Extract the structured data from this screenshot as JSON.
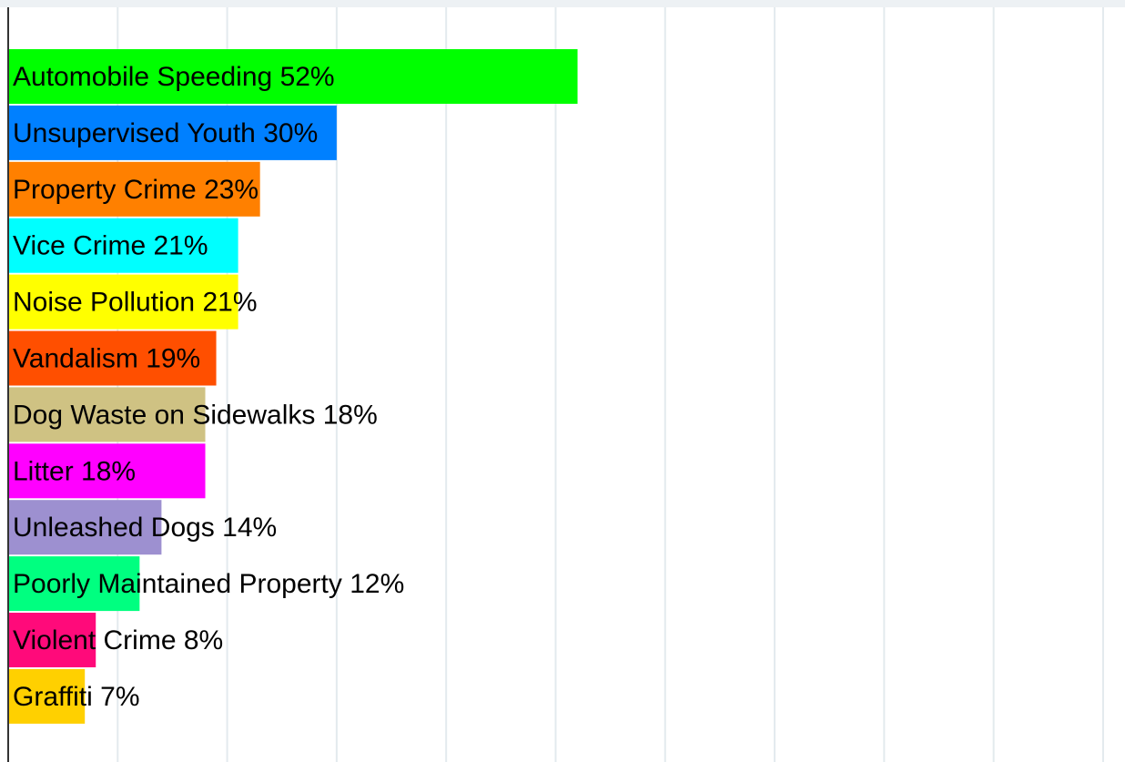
{
  "chart_data": {
    "type": "bar",
    "orientation": "horizontal",
    "categories": [
      "Automobile Speeding",
      "Unsupervised Youth",
      "Property Crime",
      "Vice Crime",
      "Noise Pollution",
      "Vandalism",
      "Dog Waste on Sidewalks",
      "Litter",
      "Unleashed Dogs",
      "Poorly Maintained Property",
      "Violent Crime",
      "Graffiti"
    ],
    "values": [
      52,
      30,
      23,
      21,
      21,
      19,
      18,
      18,
      14,
      12,
      8,
      7
    ],
    "value_labels": [
      "52%",
      "30%",
      "23%",
      "21%",
      "21%",
      "19%",
      "18%",
      "18%",
      "14%",
      "12%",
      "8%",
      "7%"
    ],
    "colors": [
      "#00ff00",
      "#0080ff",
      "#ff8000",
      "#00ffff",
      "#ffff00",
      "#ff4f00",
      "#cfc283",
      "#ff00ff",
      "#9d90d0",
      "#00ff80",
      "#ff0a7a",
      "#ffd000"
    ],
    "xlim": [
      0,
      102
    ],
    "xticks": [
      0,
      10,
      20,
      30,
      40,
      50,
      60,
      70,
      80,
      90,
      100
    ],
    "grid": true
  }
}
